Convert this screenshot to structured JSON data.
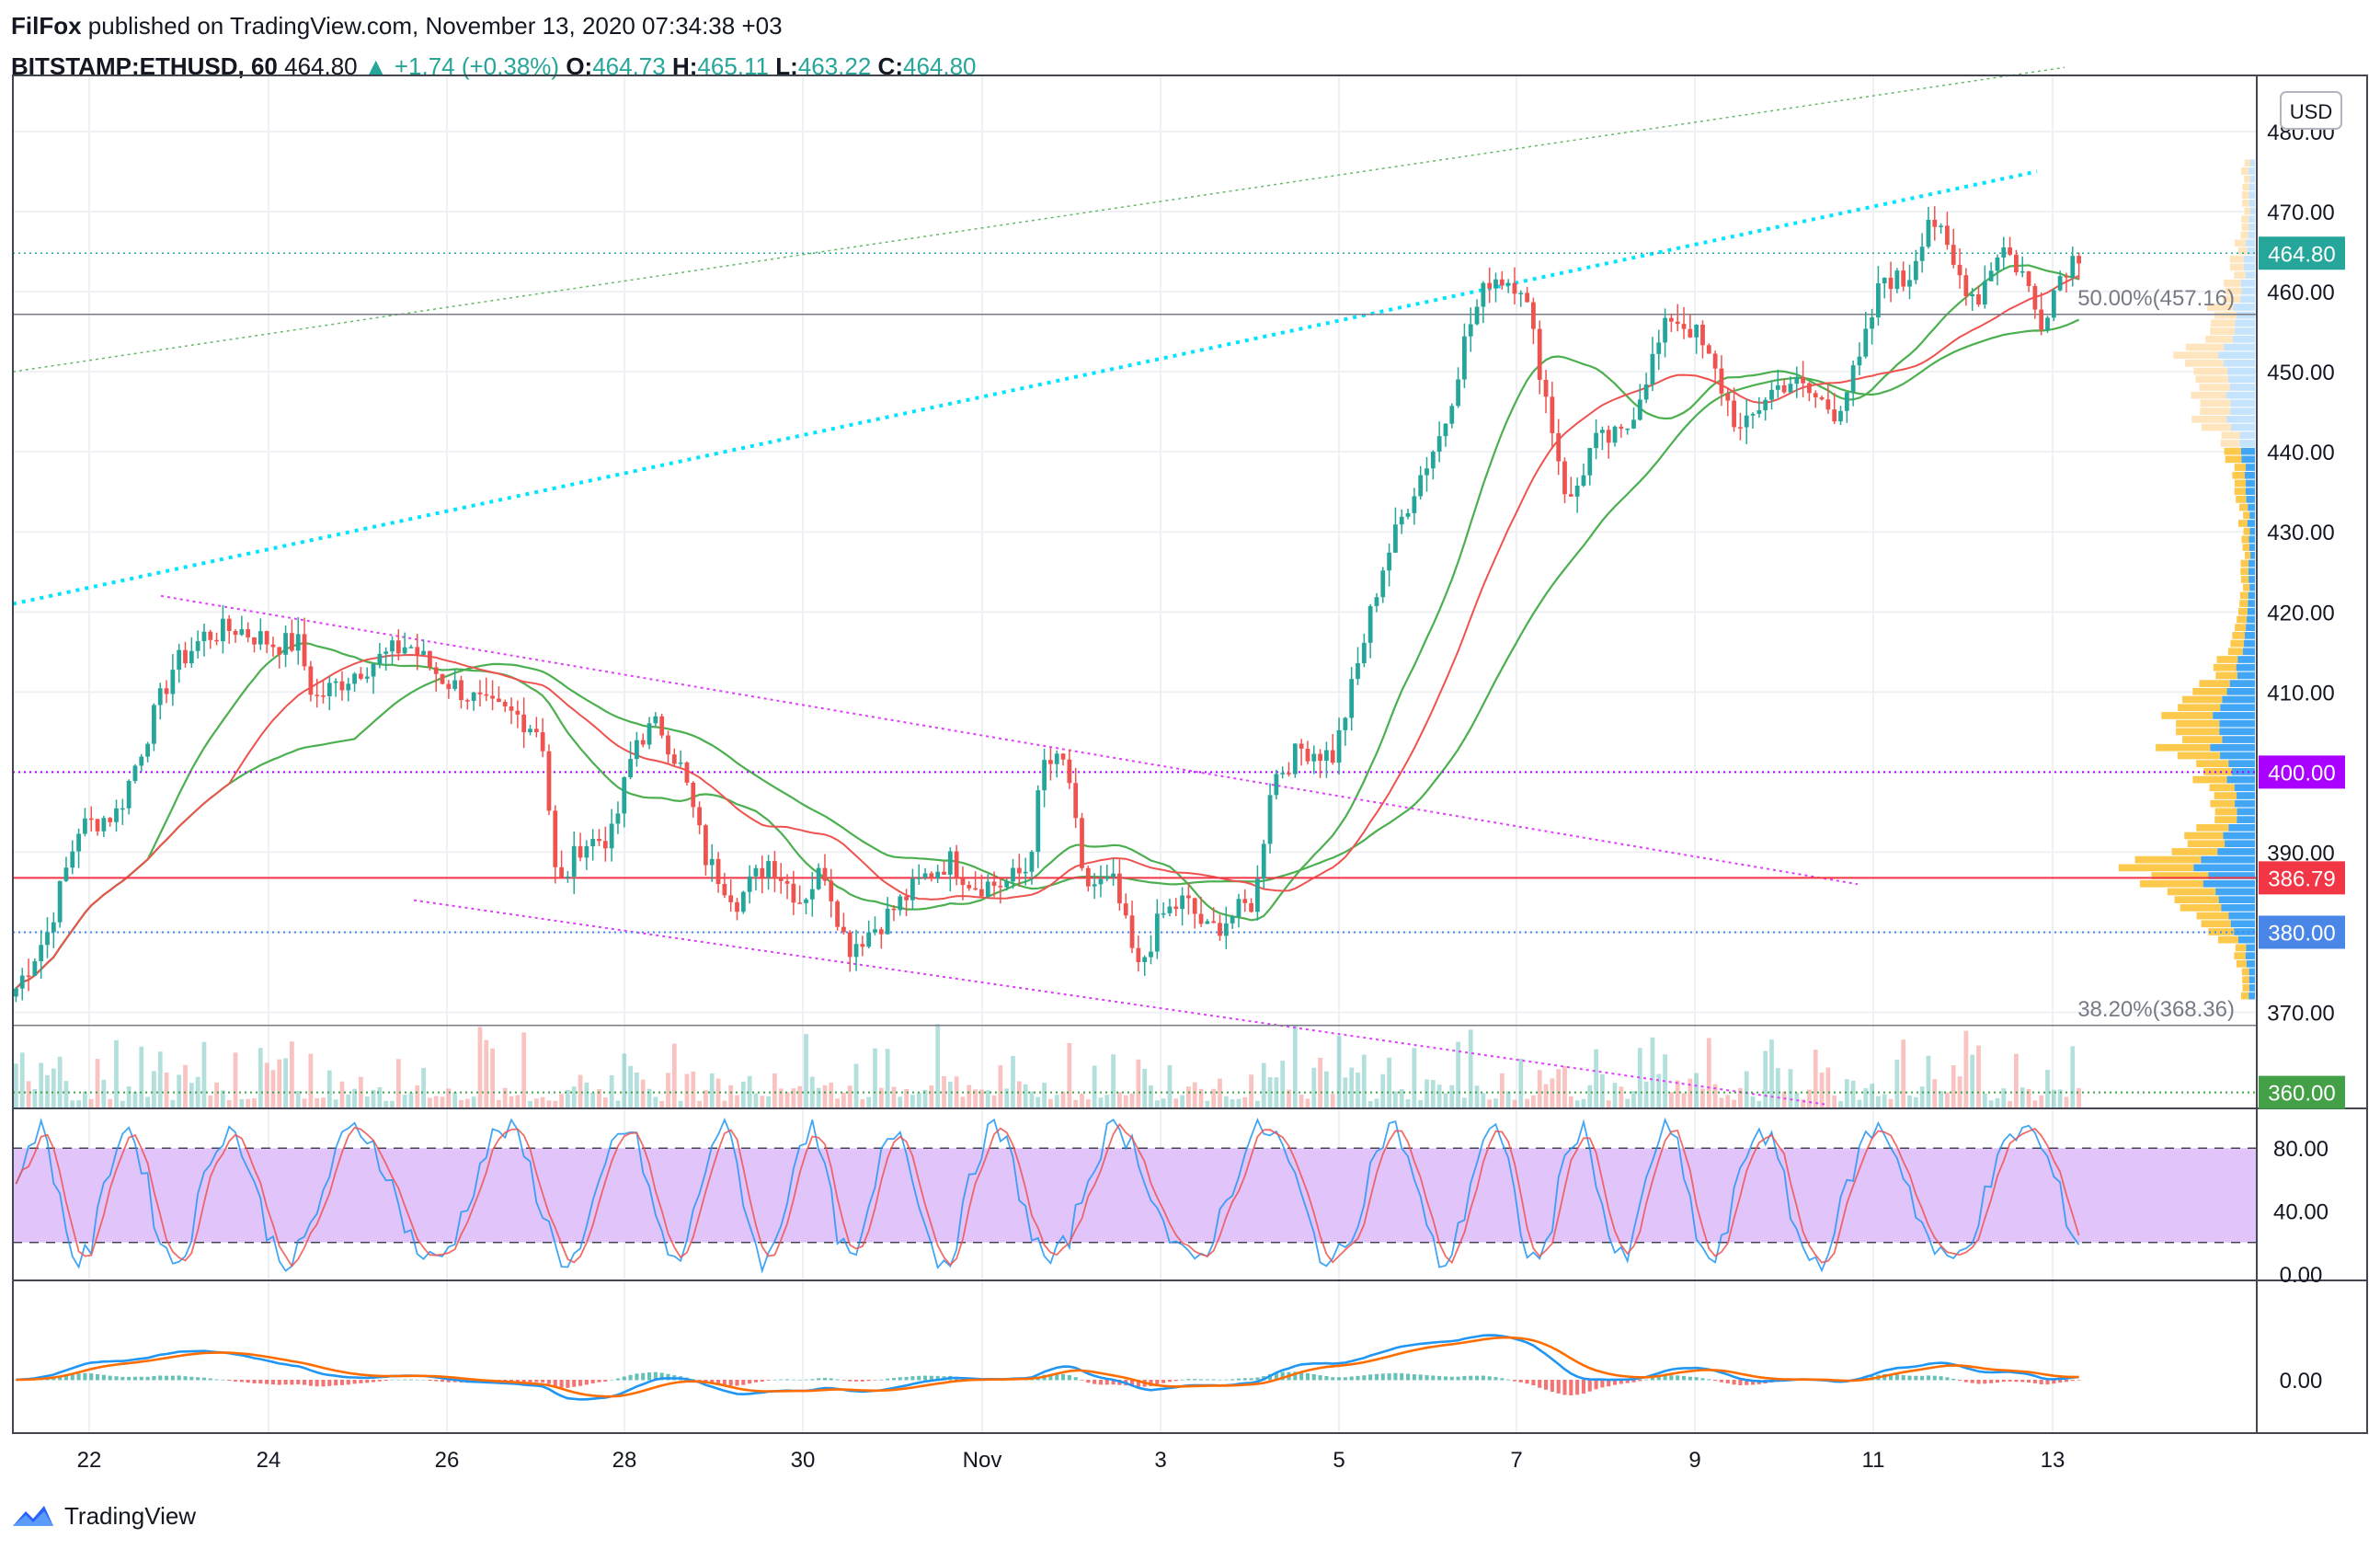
{
  "header": {
    "publisher": "FilFox",
    "published_text": "published on TradingView.com, November 13, 2020 07:34:38 +03",
    "symbol": "BITSTAMP:ETHUSD, 60",
    "last": "464.80",
    "change": "▲ +1.74 (+0.38%)",
    "o_label": "O:",
    "o_value": "464.73",
    "h_label": "H:",
    "h_value": "465.11",
    "l_label": "L:",
    "l_value": "463.22",
    "c_label": "C:",
    "c_value": "464.80"
  },
  "currency_button": "USD",
  "footer": {
    "brand": "TradingView",
    "logo_icon": "tradingview-logo-icon"
  },
  "colors": {
    "up": "#26a69a",
    "down": "#ef5350",
    "ma_fast": "#ef5350",
    "ma_green": "#4caf50",
    "cyan_trend": "#00e5ff",
    "magenta_channel": "#e040fb",
    "stoch_band": "#e1c4fa",
    "macd": "#2196f3",
    "signal": "#ff6d00",
    "vp_up": "#fbc02d",
    "vp_blue": "#2196f3"
  },
  "chart_data": [
    {
      "type": "candlestick",
      "title": "BITSTAMP:ETHUSD, 60",
      "ylim": [
        358,
        487
      ],
      "y_ticks": [
        "370.00",
        "380.00",
        "390.00",
        "400.00",
        "410.00",
        "420.00",
        "430.00",
        "440.00",
        "450.00",
        "460.00",
        "470.00",
        "480.00"
      ],
      "x_labels": [
        "22",
        "24",
        "26",
        "28",
        "30",
        "Nov",
        "3",
        "5",
        "7",
        "9",
        "11",
        "13"
      ],
      "price_path": [
        {
          "t": 0,
          "p": 373
        },
        {
          "t": 0.4,
          "p": 380
        },
        {
          "t": 0.8,
          "p": 393
        },
        {
          "t": 1.3,
          "p": 395
        },
        {
          "t": 1.6,
          "p": 403
        },
        {
          "t": 2.0,
          "p": 413
        },
        {
          "t": 2.4,
          "p": 417
        },
        {
          "t": 2.8,
          "p": 418
        },
        {
          "t": 3.3,
          "p": 416
        },
        {
          "t": 3.6,
          "p": 416
        },
        {
          "t": 3.8,
          "p": 409
        },
        {
          "t": 4.4,
          "p": 413
        },
        {
          "t": 5.0,
          "p": 416
        },
        {
          "t": 5.4,
          "p": 412
        },
        {
          "t": 5.7,
          "p": 410
        },
        {
          "t": 6.0,
          "p": 408
        },
        {
          "t": 6.4,
          "p": 407
        },
        {
          "t": 6.7,
          "p": 405
        },
        {
          "t": 6.9,
          "p": 385
        },
        {
          "t": 7.2,
          "p": 391
        },
        {
          "t": 7.6,
          "p": 392
        },
        {
          "t": 7.9,
          "p": 404
        },
        {
          "t": 8.2,
          "p": 406
        },
        {
          "t": 8.5,
          "p": 400
        },
        {
          "t": 8.8,
          "p": 389
        },
        {
          "t": 9.2,
          "p": 384
        },
        {
          "t": 9.6,
          "p": 389
        },
        {
          "t": 10.0,
          "p": 384
        },
        {
          "t": 10.3,
          "p": 388
        },
        {
          "t": 10.6,
          "p": 378
        },
        {
          "t": 11.0,
          "p": 381
        },
        {
          "t": 11.3,
          "p": 384
        },
        {
          "t": 11.6,
          "p": 387
        },
        {
          "t": 11.9,
          "p": 389
        },
        {
          "t": 12.2,
          "p": 386
        },
        {
          "t": 12.6,
          "p": 386
        },
        {
          "t": 12.9,
          "p": 388
        },
        {
          "t": 13.1,
          "p": 401
        },
        {
          "t": 13.4,
          "p": 401
        },
        {
          "t": 13.6,
          "p": 386
        },
        {
          "t": 14.0,
          "p": 386
        },
        {
          "t": 14.3,
          "p": 375
        },
        {
          "t": 14.6,
          "p": 382
        },
        {
          "t": 14.9,
          "p": 384
        },
        {
          "t": 15.2,
          "p": 380
        },
        {
          "t": 15.5,
          "p": 382
        },
        {
          "t": 15.8,
          "p": 384
        },
        {
          "t": 16.0,
          "p": 399
        },
        {
          "t": 16.4,
          "p": 403
        },
        {
          "t": 16.8,
          "p": 402
        },
        {
          "t": 17.1,
          "p": 413
        },
        {
          "t": 17.4,
          "p": 425
        },
        {
          "t": 17.8,
          "p": 435
        },
        {
          "t": 18.2,
          "p": 443
        },
        {
          "t": 18.5,
          "p": 455
        },
        {
          "t": 18.8,
          "p": 462
        },
        {
          "t": 19.2,
          "p": 461
        },
        {
          "t": 19.5,
          "p": 447
        },
        {
          "t": 19.8,
          "p": 433
        },
        {
          "t": 20.1,
          "p": 441
        },
        {
          "t": 20.5,
          "p": 442
        },
        {
          "t": 20.8,
          "p": 450
        },
        {
          "t": 21.1,
          "p": 457
        },
        {
          "t": 21.4,
          "p": 455
        },
        {
          "t": 21.7,
          "p": 449
        },
        {
          "t": 22.0,
          "p": 442
        },
        {
          "t": 22.3,
          "p": 447
        },
        {
          "t": 22.6,
          "p": 449
        },
        {
          "t": 22.9,
          "p": 447
        },
        {
          "t": 23.2,
          "p": 445
        },
        {
          "t": 23.5,
          "p": 451
        },
        {
          "t": 23.8,
          "p": 462
        },
        {
          "t": 24.1,
          "p": 461
        },
        {
          "t": 24.4,
          "p": 470
        },
        {
          "t": 24.7,
          "p": 463
        },
        {
          "t": 25.0,
          "p": 459
        },
        {
          "t": 25.3,
          "p": 466
        },
        {
          "t": 25.6,
          "p": 462
        },
        {
          "t": 25.8,
          "p": 456
        },
        {
          "t": 26.1,
          "p": 463
        },
        {
          "t": 26.3,
          "p": 464.8
        }
      ],
      "volume_profile_note": "horizontal volume profile at right edge",
      "annotations": [
        {
          "label": "50.00%(457.16)",
          "y": 457.16
        },
        {
          "label": "38.20%(368.36)",
          "y": 368.36
        }
      ],
      "price_lines": [
        {
          "y": 464.8,
          "label": "464.80",
          "color": "#26a69a"
        },
        {
          "y": 400.0,
          "label": "400.00",
          "color": "#aa00ff"
        },
        {
          "y": 386.79,
          "label": "386.79",
          "color": "#f23645"
        },
        {
          "y": 380.0,
          "label": "380.00",
          "color": "#4a86e8"
        },
        {
          "y": 360.0,
          "label": "360.00",
          "color": "#43a047"
        }
      ]
    },
    {
      "type": "line",
      "ylim": [
        0,
        100
      ],
      "y_ticks": [
        "0.00",
        "40.00",
        "80.00"
      ],
      "band": [
        20,
        80
      ]
    },
    {
      "type": "line",
      "y_ticks": [
        "0.00"
      ]
    }
  ]
}
